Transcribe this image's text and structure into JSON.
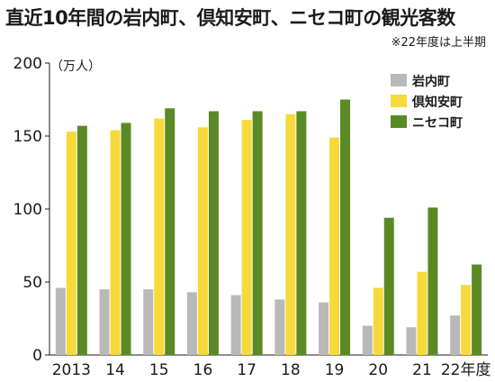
{
  "title": "直近10年間の岩内町、倶知安町、ニセコ町の観光客数",
  "note": "※22年度は上半期",
  "chart_data": {
    "type": "bar",
    "categories": [
      "2013",
      "14",
      "15",
      "16",
      "17",
      "18",
      "19",
      "20",
      "21",
      "22年度"
    ],
    "series": [
      {
        "name": "岩内町",
        "color": "#b9b9b9",
        "values": [
          46,
          45,
          45,
          43,
          41,
          38,
          36,
          20,
          19,
          27
        ]
      },
      {
        "name": "倶知安町",
        "color": "#f7d93a",
        "values": [
          153,
          154,
          162,
          156,
          161,
          165,
          149,
          46,
          57,
          48
        ]
      },
      {
        "name": "ニセコ町",
        "color": "#5a8a23",
        "values": [
          157,
          159,
          169,
          167,
          167,
          167,
          175,
          94,
          101,
          62
        ]
      }
    ],
    "ylim": [
      0,
      200
    ],
    "yticks": [
      "0",
      "50",
      "100",
      "150",
      "200"
    ],
    "unit_label": "（万人）",
    "legend_position": "top-right",
    "grid": false
  }
}
